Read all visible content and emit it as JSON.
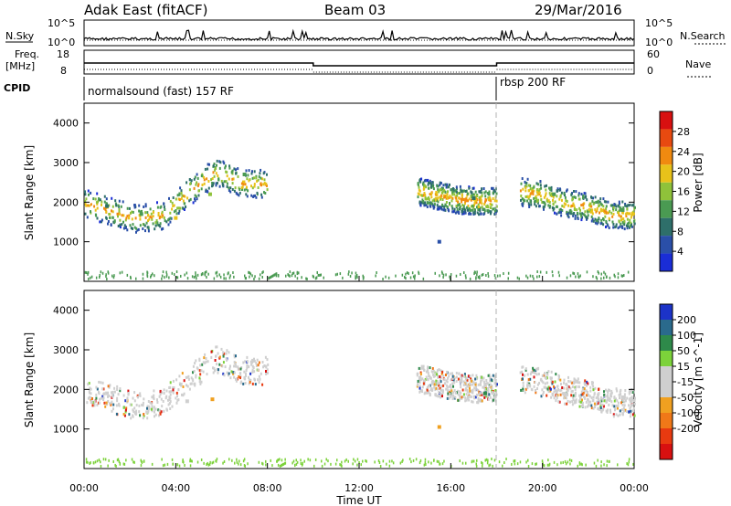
{
  "header": {
    "site": "Adak East (fitACF)",
    "beam": "Beam 03",
    "date": "29/Mar/2016"
  },
  "status_panels": {
    "nsky_label": "N.Sky",
    "nsearch_label": "N.Search",
    "nsky_ticks": [
      "10^5",
      "10^0"
    ],
    "nsearch_ticks": [
      "10^5",
      "10^0"
    ],
    "freq_label_1": "Freq.",
    "freq_label_2": "[MHz]",
    "freq_ticks": [
      "18",
      "8"
    ],
    "nave_label": "Nave",
    "nave_ticks": [
      "60",
      "0"
    ],
    "cpid_label": "CPID",
    "cpid_modes": [
      {
        "name": "normalsound (fast) 157 RF",
        "start_hour": 0
      },
      {
        "name": "rbsp 200 RF",
        "start_hour": 18
      }
    ],
    "freq_segments": [
      {
        "start_hour": 0,
        "end_hour": 10,
        "mhz": 12.5
      },
      {
        "start_hour": 10,
        "end_hour": 18,
        "mhz": 11.0
      },
      {
        "start_hour": 18,
        "end_hour": 24,
        "mhz": 12.5
      }
    ]
  },
  "colors": {
    "power_scale": [
      "#1a2dd6",
      "#2a4fa8",
      "#2e6f6a",
      "#4a9a52",
      "#8fc23a",
      "#e8c21a",
      "#f08a10",
      "#e84a10",
      "#d81010"
    ],
    "velocity_scale": [
      "#1c33c8",
      "#2a6a8c",
      "#2e8a4a",
      "#7cd23a",
      "#cfcfcf",
      "#cfcfcf",
      "#f0a020",
      "#f07818",
      "#e83a10",
      "#d81010"
    ],
    "grid_line": "#c0c0c0",
    "dashed_marker": "#b0b0b0"
  },
  "chart_data": [
    {
      "type": "heatmap",
      "title": "",
      "xlabel": "",
      "ylabel": "Slant Range [km]",
      "xlim_hours": [
        0,
        24
      ],
      "ylim": [
        0,
        4500
      ],
      "y_ticks": [
        1000,
        2000,
        3000,
        4000
      ],
      "colorbar_label": "Power [dB]",
      "colorbar_ticks": [
        "4",
        "8",
        "12",
        "16",
        "20",
        "24",
        "28"
      ],
      "scatter_regions": [
        {
          "start_hour": 0.0,
          "end_hour": 8.0,
          "center_km": [
            2000,
            1800,
            1600,
            1700,
            2300,
            2800,
            2500
          ],
          "note": ""
        },
        {
          "start_hour": 14.5,
          "end_hour": 18.0,
          "center_km": [
            2300,
            2200,
            2100,
            2050
          ],
          "note": ""
        },
        {
          "start_hour": 19.0,
          "end_hour": 24.0,
          "center_km": [
            2300,
            2200,
            2000,
            1900,
            1700
          ],
          "note": ""
        }
      ],
      "sample_cells": [
        {
          "hour": 1.0,
          "km": 1900,
          "db": 8
        },
        {
          "hour": 2.5,
          "km": 1700,
          "db": 12
        },
        {
          "hour": 4.0,
          "km": 1600,
          "db": 20
        },
        {
          "hour": 5.5,
          "km": 2200,
          "db": 16
        },
        {
          "hour": 7.0,
          "km": 2700,
          "db": 12
        },
        {
          "hour": 15.5,
          "km": 1000,
          "db": 4
        },
        {
          "hour": 17.0,
          "km": 2100,
          "db": 8
        },
        {
          "hour": 20.5,
          "km": 2200,
          "db": 12
        },
        {
          "hour": 23.5,
          "km": 1800,
          "db": 12
        }
      ]
    },
    {
      "type": "heatmap",
      "title": "",
      "xlabel": "Time UT",
      "ylabel": "Slant Range [km]",
      "xlim_hours": [
        0,
        24
      ],
      "ylim": [
        0,
        4500
      ],
      "y_ticks": [
        1000,
        2000,
        3000,
        4000
      ],
      "x_ticks": [
        "00:00",
        "04:00",
        "08:00",
        "12:00",
        "16:00",
        "20:00",
        "00:00"
      ],
      "colorbar_label": "Velocity [m s^-1]",
      "colorbar_ticks": [
        "200",
        "100",
        "50",
        "15",
        "-15",
        "-50",
        "-100",
        "-200"
      ],
      "sample_cells": [
        {
          "hour": 1.0,
          "km": 1900,
          "ms": 0
        },
        {
          "hour": 4.5,
          "km": 1700,
          "ms": -10
        },
        {
          "hour": 5.6,
          "km": 1750,
          "ms": -60
        },
        {
          "hour": 15.5,
          "km": 1050,
          "ms": -70
        },
        {
          "hour": 17.5,
          "km": 1900,
          "ms": 60
        },
        {
          "hour": 21.5,
          "km": 2200,
          "ms": 5
        },
        {
          "hour": 23.5,
          "km": 1800,
          "ms": 0
        }
      ]
    }
  ]
}
